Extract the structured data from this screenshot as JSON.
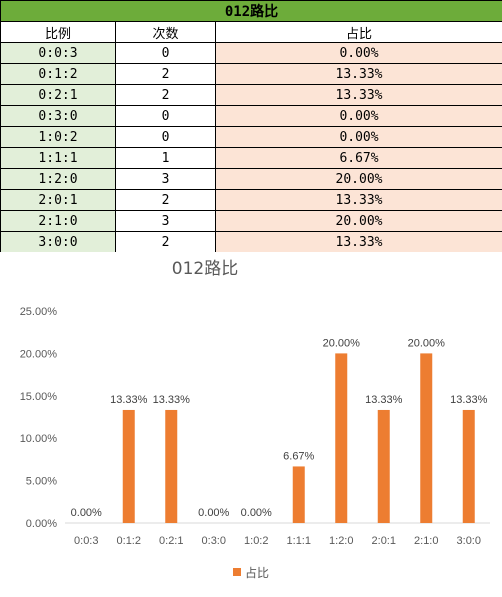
{
  "table": {
    "title": "012路比",
    "headers": [
      "比例",
      "次数",
      "占比"
    ],
    "rows": [
      [
        "0:0:3",
        "0",
        "0.00%"
      ],
      [
        "0:1:2",
        "2",
        "13.33%"
      ],
      [
        "0:2:1",
        "2",
        "13.33%"
      ],
      [
        "0:3:0",
        "0",
        "0.00%"
      ],
      [
        "1:0:2",
        "0",
        "0.00%"
      ],
      [
        "1:1:1",
        "1",
        "6.67%"
      ],
      [
        "1:2:0",
        "3",
        "20.00%"
      ],
      [
        "2:0:1",
        "2",
        "13.33%"
      ],
      [
        "2:1:0",
        "3",
        "20.00%"
      ],
      [
        "3:0:0",
        "2",
        "13.33%"
      ]
    ]
  },
  "colors": {
    "title_bg": "#6dac3a",
    "ratio_bg": "#e2efd9",
    "pct_bg": "#fce4d6",
    "bar": "#ed7d31"
  },
  "chart_data": {
    "type": "bar",
    "title": "012路比",
    "categories": [
      "0:0:3",
      "0:1:2",
      "0:2:1",
      "0:3:0",
      "1:0:2",
      "1:1:1",
      "1:2:0",
      "2:0:1",
      "2:1:0",
      "3:0:0"
    ],
    "series": [
      {
        "name": "占比",
        "values": [
          0.0,
          13.33,
          13.33,
          0.0,
          0.0,
          6.67,
          20.0,
          13.33,
          20.0,
          13.33
        ]
      }
    ],
    "data_labels": [
      "0.00%",
      "13.33%",
      "13.33%",
      "0.00%",
      "0.00%",
      "6.67%",
      "20.00%",
      "13.33%",
      "20.00%",
      "13.33%"
    ],
    "y_ticks": [
      "0.00%",
      "5.00%",
      "10.00%",
      "15.00%",
      "20.00%",
      "25.00%"
    ],
    "ylim": [
      0,
      25
    ],
    "grid": false,
    "legend_position": "bottom"
  }
}
